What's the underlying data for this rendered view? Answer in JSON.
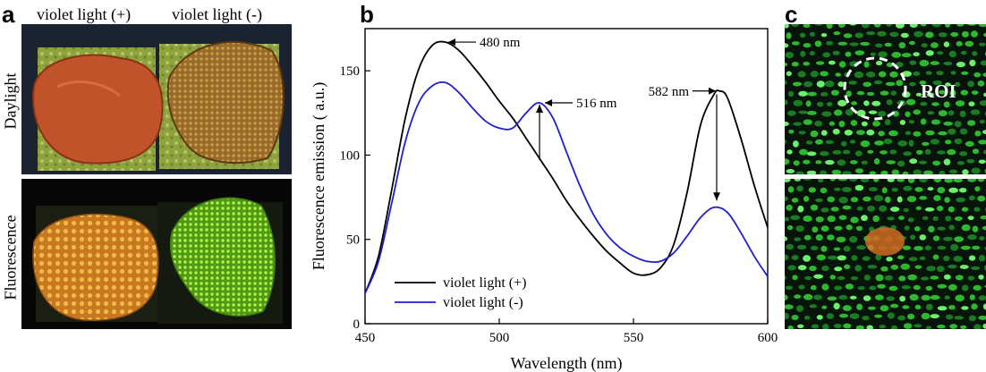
{
  "panels": {
    "a": {
      "letter": "a",
      "col_headers": [
        "violet light (+)",
        "violet light (-)"
      ],
      "row_labels": [
        "Daylight",
        "Fluorescence"
      ]
    },
    "b": {
      "letter": "b"
    },
    "c": {
      "letter": "c",
      "roi_label": "ROI"
    }
  },
  "colors": {
    "series_plus": "#000000",
    "series_minus": "#1f1fd0",
    "daylight_bg": "#1b2230",
    "fluor_bg": "#070707",
    "tile_green": "#9fb24a",
    "crust_orange": "#c0532a",
    "fluor_green": "#7fdc30",
    "fluor_orange": "#e29a2e",
    "cell_green": "#2fb82f",
    "roi_orange": "#d26a23"
  },
  "chart_data": {
    "type": "line",
    "title": "",
    "xlabel": "Wavelength (nm)",
    "ylabel": "Fluorescence emission ( a.u.)",
    "xlim": [
      450,
      600
    ],
    "ylim": [
      0,
      175
    ],
    "xticks": [
      450,
      500,
      550,
      600
    ],
    "yticks": [
      0,
      50,
      100,
      150
    ],
    "grid": false,
    "legend_position": "bottom-left",
    "series": [
      {
        "name": "violet light (+)",
        "color": "#000000",
        "x": [
          450,
          455,
          460,
          465,
          470,
          475,
          480,
          485,
          490,
          495,
          500,
          505,
          510,
          515,
          520,
          525,
          530,
          535,
          540,
          545,
          550,
          555,
          560,
          565,
          570,
          575,
          580,
          582,
          585,
          590,
          595,
          600
        ],
        "y": [
          18,
          40,
          80,
          122,
          151,
          165,
          167,
          162,
          153,
          143,
          132,
          122,
          110,
          98,
          86,
          73,
          62,
          52,
          43,
          36,
          30,
          29,
          33,
          47,
          78,
          118,
          136,
          138,
          134,
          110,
          82,
          57
        ]
      },
      {
        "name": "violet light (-)",
        "color": "#1f1fd0",
        "x": [
          450,
          455,
          460,
          465,
          470,
          475,
          480,
          485,
          490,
          495,
          500,
          505,
          510,
          515,
          520,
          525,
          530,
          535,
          540,
          545,
          550,
          555,
          560,
          565,
          570,
          575,
          580,
          585,
          590,
          595,
          600
        ],
        "y": [
          18,
          37,
          72,
          108,
          131,
          141,
          143,
          137,
          128,
          120,
          116,
          116,
          125,
          131,
          122,
          102,
          82,
          65,
          53,
          45,
          40,
          37,
          37,
          42,
          52,
          63,
          69,
          66,
          54,
          40,
          28
        ]
      }
    ],
    "annotations": [
      {
        "text": "480 nm",
        "x": 480,
        "y": 167,
        "arrow": "left"
      },
      {
        "text": "516 nm",
        "x": 516,
        "y": 131,
        "arrow": "left"
      },
      {
        "text": "582 nm",
        "x": 582,
        "y": 138,
        "arrow": "right"
      }
    ],
    "change_arrows": [
      {
        "x": 515,
        "from": 97,
        "to": 131,
        "direction": "up"
      },
      {
        "x": 581,
        "from": 136,
        "to": 72,
        "direction": "down"
      }
    ]
  }
}
